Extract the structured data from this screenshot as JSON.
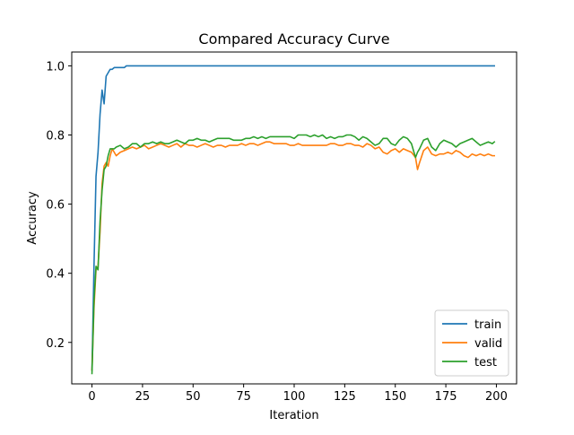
{
  "chart_data": {
    "type": "line",
    "title": "Compared Accuracy Curve",
    "xlabel": "Iteration",
    "ylabel": "Accuracy",
    "xlim": [
      -10,
      210
    ],
    "ylim": [
      0.08,
      1.04
    ],
    "xticks": [
      0,
      25,
      50,
      75,
      100,
      125,
      150,
      175,
      200
    ],
    "yticks": [
      0.2,
      0.4,
      0.6,
      0.8,
      1.0
    ],
    "xtick_labels": [
      "0",
      "25",
      "50",
      "75",
      "100",
      "125",
      "150",
      "175",
      "200"
    ],
    "ytick_labels": [
      "0.2",
      "0.4",
      "0.6",
      "0.8",
      "1.0"
    ],
    "grid": false,
    "legend_position": "lower right",
    "series": [
      {
        "name": "train",
        "color": "#1f77b4",
        "x": [
          0,
          1,
          2,
          3,
          4,
          5,
          6,
          7,
          8,
          9,
          10,
          11,
          12,
          14,
          16,
          17,
          18,
          20,
          30,
          50,
          75,
          100,
          125,
          150,
          175,
          199
        ],
        "y": [
          0.12,
          0.42,
          0.68,
          0.75,
          0.86,
          0.93,
          0.89,
          0.97,
          0.98,
          0.99,
          0.99,
          0.995,
          0.995,
          0.995,
          0.995,
          1.0,
          1.0,
          1.0,
          1.0,
          1.0,
          1.0,
          1.0,
          1.0,
          1.0,
          1.0,
          1.0
        ]
      },
      {
        "name": "valid",
        "color": "#ff7f0e",
        "x": [
          0,
          1,
          2,
          3,
          4,
          5,
          6,
          7,
          8,
          9,
          10,
          11,
          12,
          14,
          16,
          18,
          20,
          22,
          24,
          26,
          28,
          30,
          32,
          34,
          36,
          38,
          40,
          42,
          44,
          46,
          48,
          50,
          52,
          54,
          56,
          58,
          60,
          62,
          64,
          66,
          68,
          70,
          72,
          74,
          76,
          78,
          80,
          82,
          84,
          86,
          88,
          90,
          92,
          94,
          96,
          98,
          100,
          102,
          104,
          106,
          108,
          110,
          112,
          114,
          116,
          118,
          120,
          122,
          124,
          126,
          128,
          130,
          132,
          134,
          136,
          138,
          140,
          142,
          144,
          146,
          148,
          150,
          152,
          154,
          156,
          158,
          160,
          161,
          162,
          164,
          166,
          168,
          170,
          172,
          174,
          176,
          178,
          180,
          182,
          184,
          186,
          188,
          190,
          192,
          194,
          196,
          198,
          199
        ],
        "y": [
          0.12,
          0.3,
          0.41,
          0.42,
          0.52,
          0.66,
          0.71,
          0.72,
          0.71,
          0.74,
          0.76,
          0.75,
          0.74,
          0.75,
          0.755,
          0.76,
          0.765,
          0.76,
          0.765,
          0.77,
          0.76,
          0.765,
          0.77,
          0.775,
          0.77,
          0.765,
          0.77,
          0.775,
          0.765,
          0.775,
          0.77,
          0.77,
          0.765,
          0.77,
          0.775,
          0.77,
          0.765,
          0.77,
          0.77,
          0.765,
          0.77,
          0.77,
          0.77,
          0.775,
          0.77,
          0.775,
          0.775,
          0.77,
          0.775,
          0.78,
          0.78,
          0.775,
          0.775,
          0.775,
          0.775,
          0.77,
          0.77,
          0.775,
          0.77,
          0.77,
          0.77,
          0.77,
          0.77,
          0.77,
          0.77,
          0.775,
          0.775,
          0.77,
          0.77,
          0.775,
          0.775,
          0.77,
          0.77,
          0.765,
          0.775,
          0.77,
          0.76,
          0.765,
          0.75,
          0.745,
          0.755,
          0.76,
          0.75,
          0.76,
          0.755,
          0.75,
          0.735,
          0.7,
          0.72,
          0.755,
          0.765,
          0.745,
          0.74,
          0.745,
          0.745,
          0.75,
          0.745,
          0.755,
          0.75,
          0.74,
          0.735,
          0.745,
          0.74,
          0.745,
          0.74,
          0.745,
          0.74,
          0.74
        ]
      },
      {
        "name": "test",
        "color": "#2ca02c",
        "x": [
          0,
          1,
          2,
          3,
          4,
          5,
          6,
          7,
          8,
          9,
          10,
          11,
          12,
          14,
          16,
          18,
          20,
          22,
          24,
          26,
          28,
          30,
          32,
          34,
          36,
          38,
          40,
          42,
          44,
          46,
          48,
          50,
          52,
          54,
          56,
          58,
          60,
          62,
          64,
          66,
          68,
          70,
          72,
          74,
          76,
          78,
          80,
          82,
          84,
          86,
          88,
          90,
          92,
          94,
          96,
          98,
          100,
          102,
          104,
          106,
          108,
          110,
          112,
          114,
          116,
          118,
          120,
          122,
          124,
          126,
          128,
          130,
          132,
          134,
          136,
          138,
          140,
          142,
          144,
          146,
          148,
          150,
          152,
          154,
          156,
          158,
          160,
          161,
          162,
          164,
          166,
          168,
          170,
          172,
          174,
          176,
          178,
          180,
          182,
          184,
          186,
          188,
          190,
          192,
          194,
          196,
          198,
          199
        ],
        "y": [
          0.11,
          0.32,
          0.42,
          0.41,
          0.55,
          0.64,
          0.7,
          0.71,
          0.74,
          0.76,
          0.76,
          0.76,
          0.765,
          0.77,
          0.76,
          0.765,
          0.775,
          0.775,
          0.765,
          0.775,
          0.775,
          0.78,
          0.775,
          0.78,
          0.775,
          0.775,
          0.78,
          0.785,
          0.78,
          0.775,
          0.785,
          0.785,
          0.79,
          0.785,
          0.785,
          0.78,
          0.785,
          0.79,
          0.79,
          0.79,
          0.79,
          0.785,
          0.785,
          0.785,
          0.79,
          0.79,
          0.795,
          0.79,
          0.795,
          0.79,
          0.795,
          0.795,
          0.795,
          0.795,
          0.795,
          0.795,
          0.79,
          0.8,
          0.8,
          0.8,
          0.795,
          0.8,
          0.795,
          0.8,
          0.79,
          0.795,
          0.79,
          0.795,
          0.795,
          0.8,
          0.8,
          0.795,
          0.785,
          0.795,
          0.79,
          0.78,
          0.77,
          0.775,
          0.79,
          0.79,
          0.775,
          0.77,
          0.785,
          0.795,
          0.79,
          0.775,
          0.735,
          0.75,
          0.76,
          0.785,
          0.79,
          0.765,
          0.755,
          0.775,
          0.785,
          0.78,
          0.775,
          0.765,
          0.775,
          0.78,
          0.785,
          0.79,
          0.78,
          0.77,
          0.775,
          0.78,
          0.775,
          0.78
        ]
      }
    ]
  }
}
